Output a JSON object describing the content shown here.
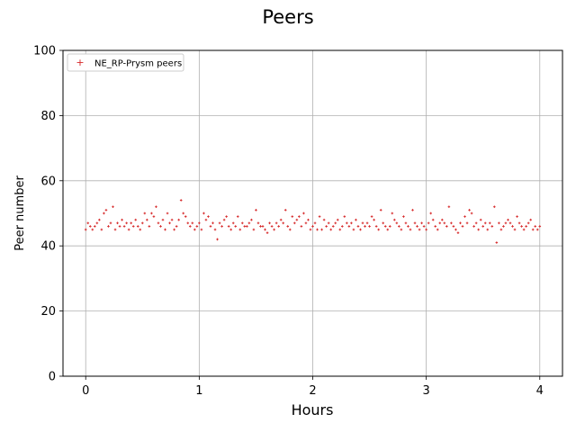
{
  "chart_data": {
    "type": "scatter",
    "title": "Peers",
    "xlabel": "Hours",
    "ylabel": "Peer number",
    "xlim": [
      -0.2,
      4.2
    ],
    "ylim": [
      0,
      100
    ],
    "xticks": [
      "0",
      "1",
      "2",
      "3",
      "4"
    ],
    "yticks": [
      "0",
      "20",
      "40",
      "60",
      "80",
      "100"
    ],
    "grid": true,
    "legend_position": "top-left",
    "series": [
      {
        "name": "NE_RP-Prysm peers",
        "color": "#d62728",
        "marker": "+",
        "x": [
          0.0,
          0.02,
          0.04,
          0.06,
          0.08,
          0.1,
          0.12,
          0.14,
          0.16,
          0.18,
          0.2,
          0.22,
          0.24,
          0.26,
          0.28,
          0.3,
          0.32,
          0.34,
          0.36,
          0.38,
          0.4,
          0.42,
          0.44,
          0.46,
          0.48,
          0.5,
          0.52,
          0.54,
          0.56,
          0.58,
          0.6,
          0.62,
          0.64,
          0.66,
          0.68,
          0.7,
          0.72,
          0.74,
          0.76,
          0.78,
          0.8,
          0.82,
          0.84,
          0.86,
          0.88,
          0.9,
          0.92,
          0.94,
          0.96,
          0.98,
          1.0,
          1.02,
          1.04,
          1.06,
          1.08,
          1.1,
          1.12,
          1.14,
          1.16,
          1.18,
          1.2,
          1.22,
          1.24,
          1.26,
          1.28,
          1.3,
          1.32,
          1.34,
          1.36,
          1.38,
          1.4,
          1.42,
          1.44,
          1.46,
          1.48,
          1.5,
          1.52,
          1.54,
          1.56,
          1.58,
          1.6,
          1.62,
          1.64,
          1.66,
          1.68,
          1.7,
          1.72,
          1.74,
          1.76,
          1.78,
          1.8,
          1.82,
          1.84,
          1.86,
          1.88,
          1.9,
          1.92,
          1.94,
          1.96,
          1.98,
          2.0,
          2.02,
          2.04,
          2.06,
          2.08,
          2.1,
          2.12,
          2.14,
          2.16,
          2.18,
          2.2,
          2.22,
          2.24,
          2.26,
          2.28,
          2.3,
          2.32,
          2.34,
          2.36,
          2.38,
          2.4,
          2.42,
          2.44,
          2.46,
          2.48,
          2.5,
          2.52,
          2.54,
          2.56,
          2.58,
          2.6,
          2.62,
          2.64,
          2.66,
          2.68,
          2.7,
          2.72,
          2.74,
          2.76,
          2.78,
          2.8,
          2.82,
          2.84,
          2.86,
          2.88,
          2.9,
          2.92,
          2.94,
          2.96,
          2.98,
          3.0,
          3.02,
          3.04,
          3.06,
          3.08,
          3.1,
          3.12,
          3.14,
          3.16,
          3.18,
          3.2,
          3.22,
          3.24,
          3.26,
          3.28,
          3.3,
          3.32,
          3.34,
          3.36,
          3.38,
          3.4,
          3.42,
          3.44,
          3.46,
          3.48,
          3.5,
          3.52,
          3.54,
          3.56,
          3.58,
          3.6,
          3.62,
          3.64,
          3.66,
          3.68,
          3.7,
          3.72,
          3.74,
          3.76,
          3.78,
          3.8,
          3.82,
          3.84,
          3.86,
          3.88,
          3.9,
          3.92,
          3.94,
          3.96,
          3.98,
          4.0
        ],
        "y": [
          45,
          47,
          46,
          45,
          46,
          47,
          48,
          45,
          50,
          51,
          46,
          47,
          52,
          45,
          47,
          46,
          48,
          46,
          47,
          45,
          47,
          46,
          48,
          46,
          45,
          47,
          50,
          48,
          46,
          50,
          49,
          52,
          47,
          46,
          48,
          45,
          50,
          47,
          48,
          45,
          46,
          48,
          54,
          50,
          49,
          47,
          46,
          47,
          45,
          46,
          47,
          45,
          50,
          48,
          49,
          46,
          47,
          45,
          42,
          47,
          46,
          48,
          49,
          46,
          45,
          47,
          46,
          49,
          45,
          47,
          46,
          46,
          47,
          48,
          45,
          51,
          47,
          46,
          46,
          45,
          44,
          47,
          46,
          45,
          47,
          46,
          48,
          47,
          51,
          46,
          45,
          49,
          47,
          48,
          49,
          46,
          50,
          47,
          48,
          45,
          46,
          47,
          45,
          49,
          45,
          48,
          46,
          47,
          45,
          46,
          47,
          48,
          45,
          46,
          49,
          47,
          46,
          47,
          45,
          48,
          46,
          45,
          47,
          46,
          47,
          46,
          49,
          48,
          46,
          45,
          51,
          47,
          46,
          45,
          46,
          50,
          48,
          47,
          46,
          45,
          49,
          47,
          46,
          45,
          51,
          47,
          46,
          45,
          47,
          46,
          45,
          47,
          50,
          48,
          46,
          45,
          47,
          48,
          47,
          46,
          52,
          47,
          46,
          45,
          44,
          47,
          46,
          49,
          47,
          51,
          50,
          46,
          47,
          45,
          48,
          46,
          47,
          45,
          47,
          46,
          52,
          41,
          47,
          45,
          46,
          47,
          48,
          47,
          46,
          45,
          49,
          47,
          46,
          45,
          46,
          47,
          48,
          45,
          46,
          45,
          46
        ]
      }
    ]
  }
}
